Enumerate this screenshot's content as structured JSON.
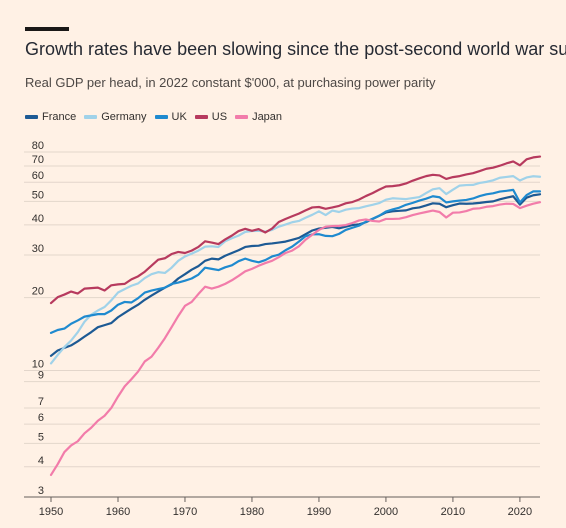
{
  "header": {
    "title": "Growth rates have been slowing since the post-second world war surge",
    "subtitle": "Real GDP per head, in 2022 constant $'000, at purchasing power parity"
  },
  "chart_data": {
    "type": "line",
    "title": "Growth rates have been slowing since the post-second world war surge",
    "subtitle": "Real GDP per head, in 2022 constant $'000, at purchasing power parity",
    "xlabel": "",
    "ylabel": "",
    "y_scale": "log",
    "xlim": [
      1950,
      2023
    ],
    "ylim": [
      3,
      85
    ],
    "x_ticks": [
      1950,
      1960,
      1970,
      1980,
      1990,
      2000,
      2010,
      2020
    ],
    "y_ticks": [
      3,
      4,
      5,
      6,
      7,
      9,
      10,
      20,
      30,
      40,
      50,
      60,
      70,
      80
    ],
    "grid": true,
    "legend_position": "top-left",
    "x": [
      1950,
      1951,
      1952,
      1953,
      1954,
      1955,
      1956,
      1957,
      1958,
      1959,
      1960,
      1961,
      1962,
      1963,
      1964,
      1965,
      1966,
      1967,
      1968,
      1969,
      1970,
      1971,
      1972,
      1973,
      1974,
      1975,
      1976,
      1977,
      1978,
      1979,
      1980,
      1981,
      1982,
      1983,
      1984,
      1985,
      1986,
      1987,
      1988,
      1989,
      1990,
      1991,
      1992,
      1993,
      1994,
      1995,
      1996,
      1997,
      1998,
      1999,
      2000,
      2001,
      2002,
      2003,
      2004,
      2005,
      2006,
      2007,
      2008,
      2009,
      2010,
      2011,
      2012,
      2013,
      2014,
      2015,
      2016,
      2017,
      2018,
      2019,
      2020,
      2021,
      2022,
      2023
    ],
    "series": [
      {
        "name": "France",
        "color": "#1D5A94",
        "values": [
          11.5,
          12.1,
          12.4,
          12.7,
          13.2,
          13.8,
          14.4,
          15.1,
          15.4,
          15.7,
          16.6,
          17.3,
          18.0,
          18.7,
          19.6,
          20.4,
          21.2,
          22.0,
          22.7,
          24.0,
          25.0,
          26.1,
          27.0,
          28.4,
          29.0,
          28.8,
          29.8,
          30.6,
          31.4,
          32.4,
          32.7,
          32.8,
          33.3,
          33.5,
          33.8,
          34.1,
          34.7,
          35.3,
          36.6,
          37.9,
          38.6,
          38.9,
          39.2,
          38.7,
          39.3,
          39.9,
          40.2,
          41.0,
          42.3,
          43.6,
          45.0,
          45.5,
          45.7,
          45.9,
          46.8,
          47.2,
          48.1,
          49.1,
          48.9,
          47.3,
          48.2,
          49.0,
          48.9,
          49.0,
          49.3,
          49.7,
          50.0,
          51.0,
          51.8,
          52.5,
          48.5,
          51.8,
          53.0,
          53.5
        ]
      },
      {
        "name": "Germany",
        "color": "#A0D2E9",
        "values": [
          10.7,
          11.6,
          12.5,
          13.3,
          14.4,
          15.9,
          17.0,
          17.7,
          18.3,
          19.5,
          21.0,
          21.7,
          22.4,
          22.9,
          24.1,
          25.0,
          25.5,
          25.3,
          26.6,
          28.4,
          29.6,
          30.4,
          31.3,
          32.5,
          32.6,
          32.4,
          34.2,
          35.2,
          36.1,
          37.4,
          37.7,
          37.8,
          37.5,
          38.1,
          39.3,
          40.1,
          41.0,
          41.5,
          42.8,
          44.0,
          45.5,
          43.9,
          45.8,
          45.2,
          46.2,
          46.7,
          46.9,
          47.7,
          48.4,
          49.2,
          50.8,
          51.5,
          51.3,
          51.1,
          51.6,
          52.1,
          54.1,
          56.1,
          56.7,
          53.6,
          55.9,
          58.1,
          58.4,
          58.5,
          59.6,
          60.2,
          61.1,
          62.6,
          63.1,
          63.6,
          61.0,
          62.8,
          63.5,
          63.2
        ]
      },
      {
        "name": "UK",
        "color": "#1F8ACF",
        "values": [
          14.3,
          14.7,
          14.9,
          15.6,
          16.1,
          16.7,
          16.9,
          17.1,
          17.1,
          17.7,
          18.7,
          19.2,
          19.1,
          19.9,
          21.0,
          21.4,
          21.7,
          22.0,
          22.8,
          23.1,
          23.5,
          24.0,
          24.9,
          26.6,
          26.3,
          26.0,
          26.7,
          27.2,
          28.3,
          29.0,
          28.4,
          28.0,
          28.6,
          29.6,
          30.1,
          31.4,
          32.5,
          34.1,
          35.9,
          36.5,
          36.6,
          36.0,
          35.9,
          36.7,
          38.1,
          38.9,
          39.7,
          41.2,
          42.4,
          43.6,
          45.4,
          46.3,
          47.1,
          48.4,
          49.3,
          50.4,
          51.3,
          52.5,
          52.0,
          49.5,
          50.0,
          50.4,
          50.7,
          51.4,
          52.6,
          53.5,
          54.0,
          54.9,
          55.3,
          55.8,
          49.5,
          53.1,
          55.0,
          55.0
        ]
      },
      {
        "name": "US",
        "color": "#B73A5E",
        "values": [
          19.0,
          20.1,
          20.6,
          21.2,
          20.8,
          21.8,
          21.9,
          22.0,
          21.4,
          22.5,
          22.7,
          22.8,
          23.8,
          24.5,
          25.6,
          27.1,
          28.7,
          29.1,
          30.3,
          30.9,
          30.6,
          31.3,
          32.4,
          34.2,
          33.8,
          33.3,
          34.8,
          36.1,
          37.7,
          38.5,
          37.8,
          38.4,
          37.2,
          38.6,
          41.1,
          42.3,
          43.4,
          44.5,
          45.9,
          47.2,
          47.4,
          46.6,
          47.2,
          47.9,
          49.1,
          49.7,
          50.9,
          52.6,
          54.1,
          55.9,
          57.6,
          57.8,
          58.3,
          59.3,
          60.9,
          62.3,
          63.6,
          64.4,
          64.0,
          61.9,
          63.0,
          63.6,
          64.6,
          65.4,
          66.7,
          68.2,
          68.9,
          70.2,
          71.8,
          73.1,
          70.5,
          74.6,
          76.0,
          76.6
        ]
      },
      {
        "name": "Japan",
        "color": "#F27CAA",
        "values": [
          3.7,
          4.1,
          4.6,
          4.9,
          5.1,
          5.5,
          5.8,
          6.2,
          6.5,
          7.0,
          7.8,
          8.6,
          9.2,
          9.9,
          10.9,
          11.4,
          12.4,
          13.6,
          15.1,
          16.8,
          18.5,
          19.2,
          20.7,
          22.2,
          21.8,
          22.2,
          22.8,
          23.6,
          24.6,
          25.7,
          26.3,
          27.1,
          27.8,
          28.4,
          29.4,
          30.6,
          31.3,
          32.6,
          34.7,
          36.4,
          38.1,
          39.3,
          39.5,
          39.6,
          39.9,
          40.7,
          41.7,
          42.1,
          41.5,
          41.3,
          42.3,
          42.3,
          42.4,
          43.0,
          43.9,
          44.6,
          45.2,
          45.8,
          45.2,
          42.9,
          44.9,
          45.0,
          45.6,
          46.6,
          46.8,
          47.5,
          47.8,
          48.5,
          48.9,
          48.8,
          46.9,
          48.0,
          48.9,
          49.6
        ]
      }
    ]
  }
}
